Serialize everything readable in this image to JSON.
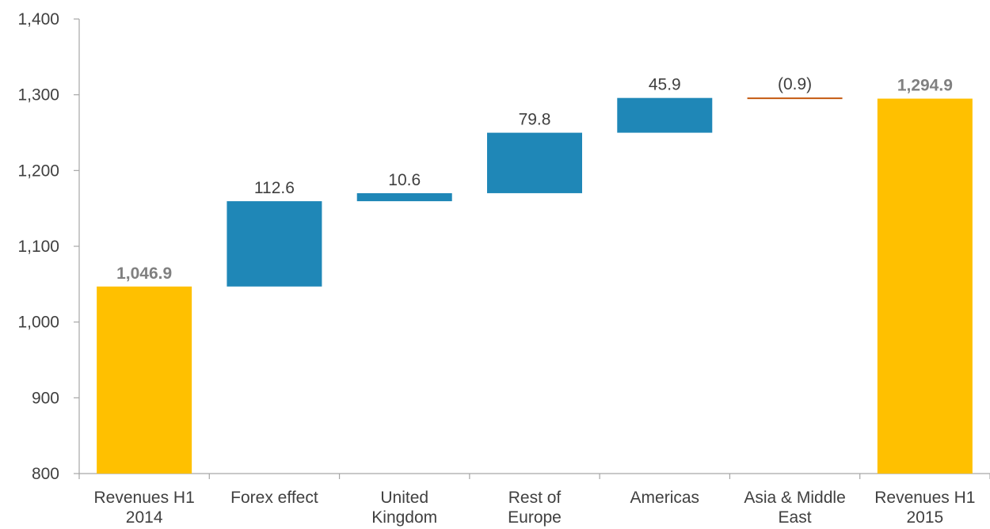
{
  "colors": {
    "total": "#ffc000",
    "increase": "#1f87b7",
    "decrease": "#c55a11",
    "axis": "#a6a6a6",
    "text": "#404040",
    "total_label": "#808080"
  },
  "chart_data": {
    "type": "waterfall",
    "title": "",
    "xlabel": "",
    "ylabel": "",
    "ylim": [
      800,
      1400
    ],
    "yticks": [
      800,
      900,
      1000,
      1100,
      1200,
      1300,
      1400
    ],
    "ytick_labels": [
      "800",
      "900",
      "1,000",
      "1,100",
      "1,200",
      "1,300",
      "1,400"
    ],
    "grid": false,
    "legend": "none",
    "bars": [
      {
        "category": [
          "Revenues H1",
          "2014"
        ],
        "kind": "total",
        "value": 1046.9,
        "label": "1,046.9"
      },
      {
        "category": [
          "Forex effect"
        ],
        "kind": "increase",
        "value": 112.6,
        "label": "112.6"
      },
      {
        "category": [
          "United",
          "Kingdom"
        ],
        "kind": "increase",
        "value": 10.6,
        "label": "10.6"
      },
      {
        "category": [
          "Rest of",
          "Europe"
        ],
        "kind": "increase",
        "value": 79.8,
        "label": "79.8"
      },
      {
        "category": [
          "Americas"
        ],
        "kind": "increase",
        "value": 45.9,
        "label": "45.9"
      },
      {
        "category": [
          "Asia & Middle",
          "East"
        ],
        "kind": "decrease",
        "value": -0.9,
        "label": "(0.9)"
      },
      {
        "category": [
          "Revenues H1",
          "2015"
        ],
        "kind": "total",
        "value": 1294.9,
        "label": "1,294.9"
      }
    ]
  }
}
